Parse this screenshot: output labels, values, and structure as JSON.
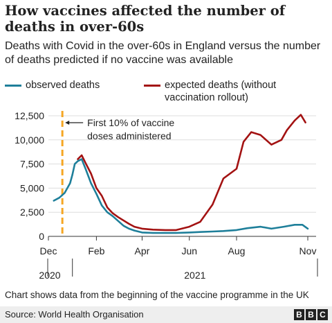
{
  "header": {
    "title": "How vaccines affected the number of deaths in over-60s",
    "subtitle": "Deaths with Covid in the over-60s in England versus the number of deaths predicted if no vaccine was available"
  },
  "legend": {
    "observed_label": "observed deaths",
    "expected_label": "expected deaths (without vaccination rollout)"
  },
  "annotation": {
    "text_line1": "First 10% of vaccine",
    "text_line2": "doses administered",
    "color": "#f5a623"
  },
  "footer": {
    "note": "Chart shows data from the beginning of the vaccine programme in the UK",
    "source": "Source: World Health Organisation",
    "logo_letters": [
      "B",
      "B",
      "C"
    ]
  },
  "chart_data": {
    "type": "line",
    "x_tick_labels": [
      "Dec",
      "Feb",
      "Apr",
      "Jun",
      "Aug",
      "Nov"
    ],
    "year_labels": [
      "2020",
      "2021"
    ],
    "y_tick_labels": [
      "12,500",
      "10,000",
      "7,500",
      "5,000",
      "2,500",
      "0"
    ],
    "y_ticks": [
      12500,
      10000,
      7500,
      5000,
      2500,
      0
    ],
    "ylim": [
      0,
      13000
    ],
    "grid": true,
    "series": [
      {
        "name": "observed deaths",
        "color": "#1e7f9a",
        "x": [
          "2020-12-08",
          "2020-12-15",
          "2020-12-22",
          "2020-12-29",
          "2021-01-01",
          "2021-01-04",
          "2021-01-08",
          "2021-01-13",
          "2021-01-18",
          "2021-01-25",
          "2021-02-01",
          "2021-02-08",
          "2021-02-15",
          "2021-02-22",
          "2021-03-01",
          "2021-03-08",
          "2021-03-15",
          "2021-03-22",
          "2021-04-01",
          "2021-04-15",
          "2021-05-01",
          "2021-05-15",
          "2021-06-01",
          "2021-06-15",
          "2021-07-01",
          "2021-07-15",
          "2021-08-01",
          "2021-08-15",
          "2021-09-01",
          "2021-09-15",
          "2021-10-01",
          "2021-10-15",
          "2021-10-25",
          "2021-11-01"
        ],
        "values": [
          3700,
          4000,
          4500,
          5500,
          6400,
          7500,
          7800,
          8000,
          7000,
          5500,
          4400,
          3200,
          2500,
          2100,
          1600,
          1100,
          800,
          600,
          400,
          350,
          350,
          350,
          400,
          450,
          500,
          550,
          650,
          850,
          1000,
          800,
          1000,
          1200,
          1200,
          800
        ]
      },
      {
        "name": "expected deaths (without vaccination rollout)",
        "color": "#a31212",
        "x": [
          "2021-01-08",
          "2021-01-13",
          "2021-01-18",
          "2021-01-25",
          "2021-02-01",
          "2021-02-08",
          "2021-02-15",
          "2021-02-22",
          "2021-03-01",
          "2021-03-15",
          "2021-03-22",
          "2021-04-01",
          "2021-04-15",
          "2021-05-01",
          "2021-05-15",
          "2021-06-01",
          "2021-06-15",
          "2021-07-01",
          "2021-07-15",
          "2021-08-01",
          "2021-08-10",
          "2021-08-20",
          "2021-09-01",
          "2021-09-15",
          "2021-09-28",
          "2021-10-05",
          "2021-10-15",
          "2021-10-23",
          "2021-10-29"
        ],
        "values": [
          8000,
          8400,
          7600,
          6500,
          5000,
          4200,
          3000,
          2400,
          2000,
          1300,
          1000,
          800,
          700,
          650,
          650,
          1000,
          1500,
          3300,
          6000,
          7000,
          9800,
          10800,
          10500,
          9500,
          10000,
          11000,
          12000,
          12600,
          11800
        ]
      }
    ],
    "markers": [
      {
        "type": "vertical_dashed_line",
        "date": "2020-12-19",
        "label": "First 10% of vaccine doses administered"
      }
    ]
  }
}
